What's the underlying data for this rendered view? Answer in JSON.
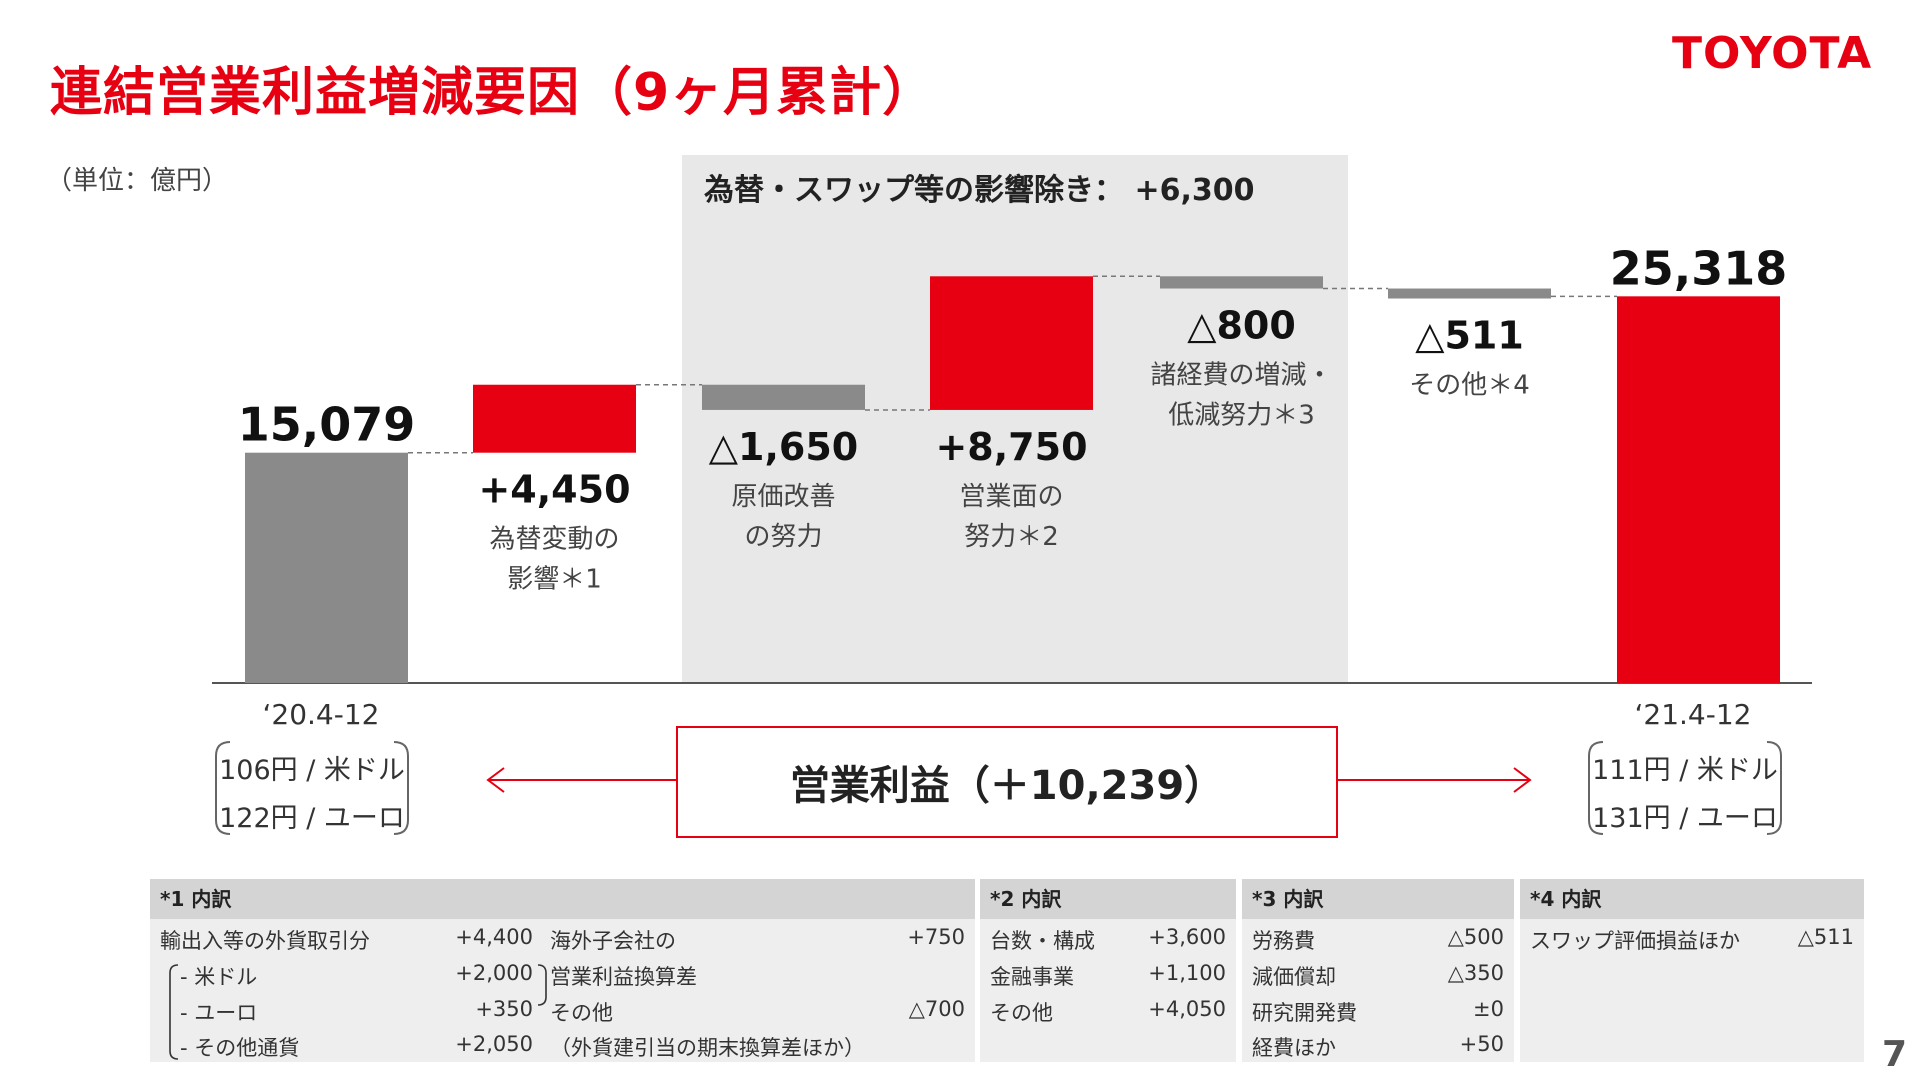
{
  "header": {
    "title": "連結営業利益増減要因（9ヶ月累計）",
    "logo": "TOYOTA",
    "unit": "（単位：億円）",
    "page_number": "7"
  },
  "colors": {
    "accent": "#e60012",
    "bar_gray": "#8a8a8a",
    "shade": "#e8e8e8"
  },
  "chart_data": {
    "type": "bar",
    "subtype": "waterfall",
    "title": "",
    "categories": [
      "‘20.4-12",
      "為替変動の影響",
      "原価改善の努力",
      "営業面の努力",
      "諸経費の増減・低減努力",
      "その他",
      "‘21.4-12"
    ],
    "values": [
      15079,
      4450,
      -1650,
      8750,
      -800,
      -511,
      25318
    ],
    "bar_kinds": [
      "total",
      "increase",
      "decrease",
      "increase",
      "decrease",
      "decrease",
      "total"
    ],
    "bar_colors": [
      "#8a8a8a",
      "#e60012",
      "#8a8a8a",
      "#e60012",
      "#8a8a8a",
      "#8a8a8a",
      "#e60012"
    ],
    "value_labels": [
      "15,079",
      "+4,450",
      "△1,650",
      "+8,750",
      "△800",
      "△511",
      "25,318"
    ],
    "desc_labels": [
      [],
      [
        "為替変動の",
        "影響＊1"
      ],
      [
        "原価改善",
        "の努力"
      ],
      [
        "営業面の",
        "努力＊2"
      ],
      [
        "諸経費の増減・",
        "低減努力＊3"
      ],
      [
        "その他＊4"
      ],
      []
    ],
    "shaded_region": {
      "label": "為替・スワップ等の影響除き：",
      "value": "+6,300",
      "from_category": 2,
      "to_category": 4
    },
    "ylim": [
      0,
      27500
    ],
    "grid": false,
    "legend": "none"
  },
  "periods": {
    "start": {
      "label": "‘20.4-12",
      "rates": [
        "106円 / 米ドル",
        "122円 / ユーロ"
      ]
    },
    "end": {
      "label": "‘21.4-12",
      "rates": [
        "111円 / 米ドル",
        "131円 / ユーロ"
      ]
    }
  },
  "operating_profit": "営業利益（＋10,239）",
  "notes": {
    "n1": {
      "head": "*1 内訳",
      "left_rows": [
        {
          "label": "輸出入等の外貨取引分",
          "value": "+4,400"
        },
        {
          "label": "- 米ドル",
          "value": "+2,000"
        },
        {
          "label": "- ユーロ",
          "value": "+350"
        },
        {
          "label": "- その他通貨",
          "value": "+2,050"
        }
      ],
      "right_rows": [
        {
          "label": "海外子会社の",
          "value": "+750"
        },
        {
          "label": "営業利益換算差",
          "value": ""
        },
        {
          "label": "その他",
          "value": "△700"
        },
        {
          "label": "（外貨建引当の期末換算差ほか）",
          "value": ""
        }
      ]
    },
    "n2": {
      "head": "*2 内訳",
      "rows": [
        {
          "label": "台数・構成",
          "value": "+3,600"
        },
        {
          "label": "金融事業",
          "value": "+1,100"
        },
        {
          "label": "その他",
          "value": "+4,050"
        }
      ]
    },
    "n3": {
      "head": "*3 内訳",
      "rows": [
        {
          "label": "労務費",
          "value": "△500"
        },
        {
          "label": "減価償却",
          "value": "△350"
        },
        {
          "label": "研究開発費",
          "value": "±0"
        },
        {
          "label": "経費ほか",
          "value": "+50"
        }
      ]
    },
    "n4": {
      "head": "*4 内訳",
      "rows": [
        {
          "label": "スワップ評価損益ほか",
          "value": "△511"
        }
      ]
    }
  }
}
